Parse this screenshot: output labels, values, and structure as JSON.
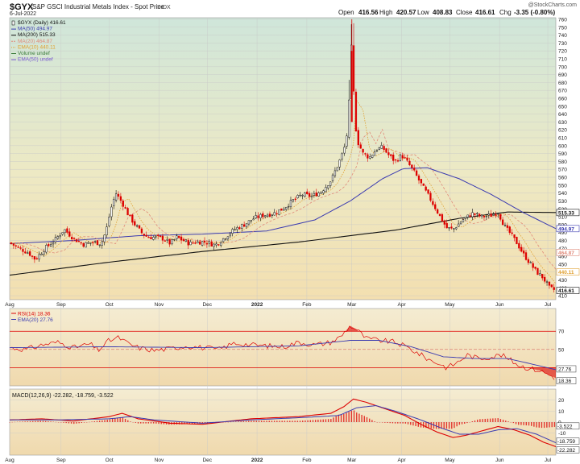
{
  "header": {
    "symbol": "$GYX",
    "name": "S&P GSCI Industrial Metals Index - Spot Price",
    "exchange": "INDX",
    "date": "6-Jul-2022",
    "watermark": "@StockCharts.com",
    "quote": {
      "open_label": "Open",
      "open": "416.56",
      "high_label": "High",
      "high": "420.57",
      "low_label": "Low",
      "low": "408.83",
      "close_label": "Close",
      "close": "416.61",
      "chg_label": "Chg",
      "chg": "-3.35 (-0.80%)"
    }
  },
  "colors": {
    "up": "#111111",
    "down": "#dd0000",
    "ma50": "#3a3ab0",
    "ma200": "#111111",
    "ma20": "#e08a7a",
    "ema10": "#e0a030",
    "ema50": "#7a5ad0",
    "rsi": "#dd0000",
    "rsi_ema": "#3a3ab0",
    "macd": "#dd0000",
    "signal": "#3a3ab0",
    "hist": "#dd0000"
  },
  "legend": [
    {
      "icon": "candle-icon",
      "text": "$GYX (Daily) 416.61",
      "color": "#111111"
    },
    {
      "icon": "line-icon",
      "text": "MA(50) 494.97",
      "color": "#3a3ab0"
    },
    {
      "icon": "line-icon",
      "text": "MA(200) 515.33",
      "color": "#111111"
    },
    {
      "icon": "dashed-line-icon",
      "text": "MA(20) 464.87",
      "color": "#e08a7a"
    },
    {
      "icon": "dotted-line-icon",
      "text": "EMA(10) 440.11",
      "color": "#e0a030"
    },
    {
      "icon": "volume-icon",
      "text": "Volume undef",
      "color": "#3a7a3a"
    },
    {
      "icon": "line-icon",
      "text": "EMA(50) undef",
      "color": "#7a5ad0"
    }
  ],
  "price_panel": {
    "ylim": [
      405,
      762
    ],
    "ticks": [
      410,
      420,
      430,
      440,
      450,
      460,
      470,
      480,
      490,
      500,
      510,
      520,
      530,
      540,
      550,
      560,
      570,
      580,
      590,
      600,
      610,
      620,
      630,
      640,
      650,
      660,
      670,
      680,
      690,
      700,
      710,
      720,
      730,
      740,
      750,
      760
    ],
    "badges": [
      {
        "text": "515.33",
        "value": 515.33,
        "bg": "#ffffff",
        "fg": "#111111"
      },
      {
        "text": "494.97",
        "value": 494.97,
        "bg": "#ffffff",
        "fg": "#3a3ab0"
      },
      {
        "text": "464.87",
        "value": 464.87,
        "bg": "#ffffff",
        "fg": "#e08a7a"
      },
      {
        "text": "440.11",
        "value": 440.11,
        "bg": "#ffffff",
        "fg": "#e0a030"
      },
      {
        "text": "416.61",
        "value": 416.61,
        "bg": "#ffffff",
        "fg": "#111111"
      }
    ]
  },
  "rsi_panel": {
    "labels": [
      {
        "text": "RSI(14) 18.36",
        "color": "#dd0000"
      },
      {
        "text": "EMA(20) 27.76",
        "color": "#3a3ab0"
      }
    ],
    "ylim": [
      10,
      95
    ],
    "ticks": [
      70,
      50,
      30
    ],
    "badges": [
      {
        "text": "27.76",
        "value": 27.76
      },
      {
        "text": "18.36",
        "value": 18.36
      }
    ]
  },
  "macd_panel": {
    "label": "MACD(12,26,9) -22.282, -18.759, -3.522",
    "ylim": [
      -30,
      30
    ],
    "ticks": [
      20,
      10,
      0,
      -10
    ],
    "badges": [
      {
        "text": "-3.522",
        "value": -3.522
      },
      {
        "text": "-18.759",
        "value": -18.759
      },
      {
        "text": "-22.282",
        "value": -22.282
      }
    ]
  },
  "x_axis": {
    "labels": [
      {
        "text": "Aug",
        "day": 0
      },
      {
        "text": "Sep",
        "day": 32
      },
      {
        "text": "Oct",
        "day": 62
      },
      {
        "text": "Nov",
        "day": 93
      },
      {
        "text": "Dec",
        "day": 123
      },
      {
        "text": "2022",
        "day": 154
      },
      {
        "text": "Feb",
        "day": 185
      },
      {
        "text": "Mar",
        "day": 213
      },
      {
        "text": "Apr",
        "day": 244
      },
      {
        "text": "May",
        "day": 274
      },
      {
        "text": "Jun",
        "day": 305
      },
      {
        "text": "Jul",
        "day": 335
      }
    ],
    "total_days": 340
  },
  "chart_data": {
    "type": "candlestick",
    "series": [
      {
        "name": "$GYX (Daily)",
        "last": 416.61
      },
      {
        "name": "MA(50)",
        "last": 494.97
      },
      {
        "name": "MA(200)",
        "last": 515.33
      },
      {
        "name": "MA(20)",
        "last": 464.87
      },
      {
        "name": "EMA(10)",
        "last": 440.11
      },
      {
        "name": "RSI(14)",
        "last": 18.36
      },
      {
        "name": "EMA(20)",
        "last": 27.76
      },
      {
        "name": "MACD(12,26,9)",
        "last": [
          -22.282,
          -18.759,
          -3.522
        ]
      }
    ],
    "price_keypoints": [
      [
        0,
        477
      ],
      [
        6,
        470
      ],
      [
        12,
        464
      ],
      [
        16,
        456
      ],
      [
        22,
        470
      ],
      [
        28,
        480
      ],
      [
        34,
        494
      ],
      [
        40,
        482
      ],
      [
        46,
        475
      ],
      [
        52,
        478
      ],
      [
        57,
        476
      ],
      [
        60,
        492
      ],
      [
        63,
        520
      ],
      [
        66,
        540
      ],
      [
        70,
        528
      ],
      [
        74,
        512
      ],
      [
        78,
        500
      ],
      [
        82,
        490
      ],
      [
        86,
        484
      ],
      [
        92,
        484
      ],
      [
        96,
        482
      ],
      [
        100,
        476
      ],
      [
        104,
        484
      ],
      [
        108,
        480
      ],
      [
        112,
        476
      ],
      [
        116,
        478
      ],
      [
        122,
        478
      ],
      [
        128,
        474
      ],
      [
        134,
        484
      ],
      [
        140,
        494
      ],
      [
        146,
        500
      ],
      [
        152,
        508
      ],
      [
        158,
        512
      ],
      [
        164,
        514
      ],
      [
        170,
        520
      ],
      [
        176,
        530
      ],
      [
        182,
        538
      ],
      [
        188,
        536
      ],
      [
        194,
        542
      ],
      [
        200,
        556
      ],
      [
        204,
        574
      ],
      [
        208,
        594
      ],
      [
        210,
        615
      ],
      [
        211,
        640
      ],
      [
        212,
        700
      ],
      [
        213,
        735
      ],
      [
        214,
        672
      ],
      [
        216,
        608
      ],
      [
        220,
        590
      ],
      [
        224,
        585
      ],
      [
        228,
        595
      ],
      [
        232,
        598
      ],
      [
        236,
        588
      ],
      [
        240,
        580
      ],
      [
        244,
        588
      ],
      [
        248,
        578
      ],
      [
        252,
        566
      ],
      [
        256,
        552
      ],
      [
        262,
        532
      ],
      [
        268,
        510
      ],
      [
        272,
        496
      ],
      [
        276,
        494
      ],
      [
        282,
        506
      ],
      [
        288,
        514
      ],
      [
        294,
        510
      ],
      [
        300,
        512
      ],
      [
        304,
        516
      ],
      [
        308,
        498
      ],
      [
        312,
        488
      ],
      [
        316,
        476
      ],
      [
        320,
        462
      ],
      [
        324,
        451
      ],
      [
        328,
        440
      ],
      [
        332,
        433
      ],
      [
        336,
        420
      ],
      [
        340,
        416.61
      ]
    ],
    "ma200_keypoints": [
      [
        0,
        436
      ],
      [
        60,
        452
      ],
      [
        120,
        466
      ],
      [
        180,
        478
      ],
      [
        240,
        493
      ],
      [
        280,
        508
      ],
      [
        310,
        516
      ],
      [
        340,
        515.33
      ]
    ],
    "ma50_keypoints": [
      [
        0,
        476
      ],
      [
        40,
        480
      ],
      [
        80,
        486
      ],
      [
        120,
        488
      ],
      [
        160,
        492
      ],
      [
        190,
        506
      ],
      [
        212,
        530
      ],
      [
        232,
        558
      ],
      [
        245,
        571
      ],
      [
        260,
        572
      ],
      [
        280,
        558
      ],
      [
        300,
        538
      ],
      [
        320,
        515
      ],
      [
        340,
        494.97
      ]
    ],
    "rsi_keypoints": [
      [
        0,
        52
      ],
      [
        10,
        50
      ],
      [
        20,
        55
      ],
      [
        30,
        58
      ],
      [
        40,
        52
      ],
      [
        50,
        56
      ],
      [
        55,
        49
      ],
      [
        62,
        60
      ],
      [
        68,
        63
      ],
      [
        74,
        56
      ],
      [
        80,
        52
      ],
      [
        90,
        49
      ],
      [
        100,
        51
      ],
      [
        110,
        54
      ],
      [
        120,
        52
      ],
      [
        130,
        50
      ],
      [
        140,
        57
      ],
      [
        150,
        55
      ],
      [
        160,
        54
      ],
      [
        170,
        53
      ],
      [
        180,
        58
      ],
      [
        190,
        55
      ],
      [
        200,
        58
      ],
      [
        206,
        64
      ],
      [
        212,
        76
      ],
      [
        216,
        72
      ],
      [
        222,
        62
      ],
      [
        230,
        60
      ],
      [
        240,
        58
      ],
      [
        248,
        52
      ],
      [
        256,
        44
      ],
      [
        262,
        38
      ],
      [
        268,
        34
      ],
      [
        272,
        30
      ],
      [
        278,
        35
      ],
      [
        285,
        44
      ],
      [
        292,
        40
      ],
      [
        300,
        42
      ],
      [
        306,
        44
      ],
      [
        312,
        38
      ],
      [
        318,
        32
      ],
      [
        324,
        29
      ],
      [
        330,
        27
      ],
      [
        336,
        22
      ],
      [
        340,
        18.36
      ]
    ],
    "rsi_ema_keypoints": [
      [
        0,
        52
      ],
      [
        60,
        53
      ],
      [
        120,
        52
      ],
      [
        180,
        54
      ],
      [
        212,
        60
      ],
      [
        230,
        60
      ],
      [
        250,
        53
      ],
      [
        270,
        42
      ],
      [
        290,
        40
      ],
      [
        310,
        40
      ],
      [
        325,
        34
      ],
      [
        340,
        27.76
      ]
    ],
    "macd_keypoints": [
      [
        0,
        2
      ],
      [
        20,
        3
      ],
      [
        40,
        1
      ],
      [
        62,
        5
      ],
      [
        70,
        8
      ],
      [
        80,
        3
      ],
      [
        100,
        -1
      ],
      [
        120,
        -2
      ],
      [
        150,
        3
      ],
      [
        180,
        5
      ],
      [
        200,
        8
      ],
      [
        208,
        14
      ],
      [
        214,
        21
      ],
      [
        222,
        18
      ],
      [
        234,
        12
      ],
      [
        246,
        6
      ],
      [
        256,
        -2
      ],
      [
        266,
        -9
      ],
      [
        276,
        -14
      ],
      [
        284,
        -12
      ],
      [
        294,
        -8
      ],
      [
        304,
        -4
      ],
      [
        314,
        -7
      ],
      [
        324,
        -12
      ],
      [
        332,
        -18
      ],
      [
        340,
        -22.282
      ]
    ],
    "signal_keypoints": [
      [
        0,
        2
      ],
      [
        30,
        2
      ],
      [
        62,
        3
      ],
      [
        75,
        5
      ],
      [
        90,
        2
      ],
      [
        120,
        -1
      ],
      [
        150,
        2
      ],
      [
        180,
        4
      ],
      [
        205,
        6
      ],
      [
        216,
        13
      ],
      [
        228,
        15
      ],
      [
        240,
        10
      ],
      [
        256,
        2
      ],
      [
        268,
        -5
      ],
      [
        280,
        -11
      ],
      [
        292,
        -11
      ],
      [
        304,
        -7
      ],
      [
        316,
        -6
      ],
      [
        328,
        -11
      ],
      [
        340,
        -18.759
      ]
    ]
  }
}
